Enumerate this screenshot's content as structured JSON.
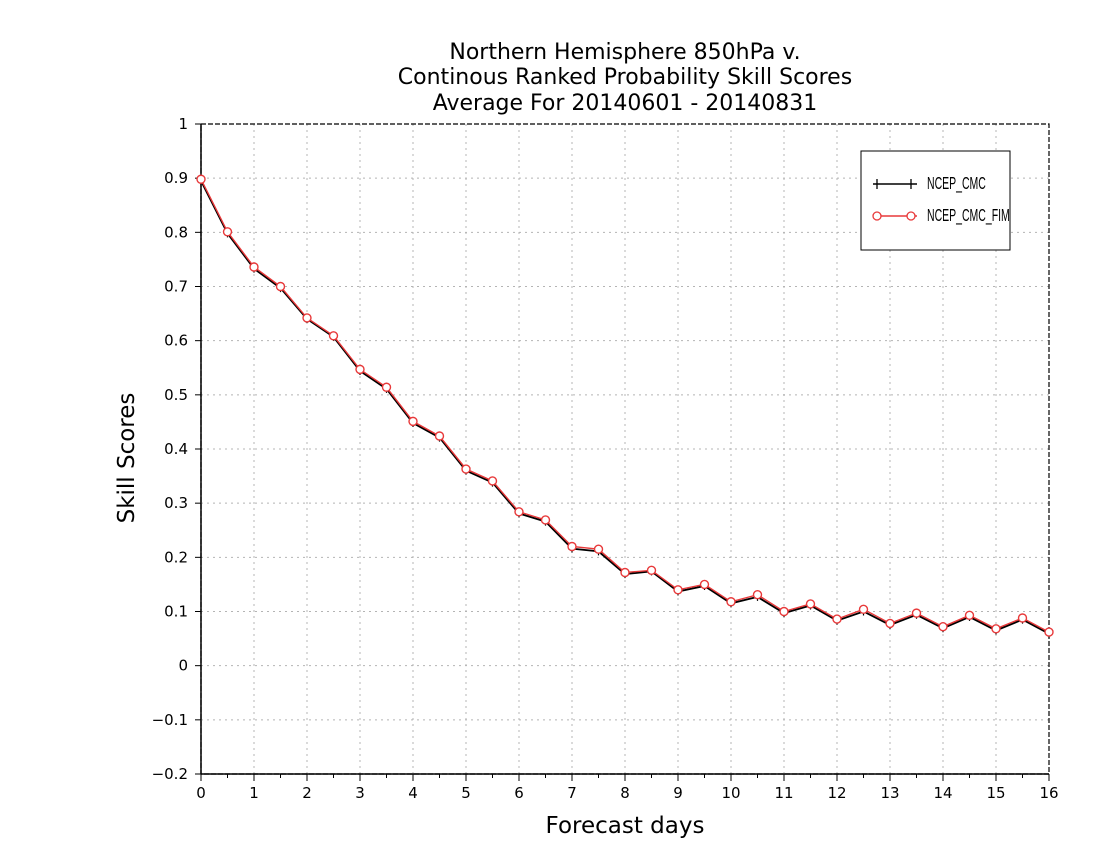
{
  "chart_data": {
    "type": "line",
    "title": [
      "Northern Hemisphere 850hPa v.",
      "Continous Ranked Probability Skill Scores",
      "Average For 20140601 - 20140831"
    ],
    "xlabel": "Forecast days",
    "ylabel": "Skill Scores",
    "xlim": [
      0,
      16
    ],
    "ylim": [
      -0.2,
      1
    ],
    "xticks": [
      "0",
      "1",
      "2",
      "3",
      "4",
      "5",
      "6",
      "7",
      "8",
      "9",
      "10",
      "11",
      "12",
      "13",
      "14",
      "15",
      "16"
    ],
    "yticks": [
      "-0.2",
      "-0.1",
      "0",
      "0.1",
      "0.2",
      "0.3",
      "0.4",
      "0.5",
      "0.6",
      "0.7",
      "0.8",
      "0.9",
      "1"
    ],
    "grid": true,
    "legend_position": "top-right",
    "x": [
      0,
      0.5,
      1,
      1.5,
      2,
      2.5,
      3,
      3.5,
      4,
      4.5,
      5,
      5.5,
      6,
      6.5,
      7,
      7.5,
      8,
      8.5,
      9,
      9.5,
      10,
      10.5,
      11,
      11.5,
      12,
      12.5,
      13,
      13.5,
      14,
      14.5,
      15,
      15.5,
      16
    ],
    "series": [
      {
        "name": "NCEP_CMC",
        "color": "#000000",
        "marker": "plus",
        "values": [
          0.895,
          0.798,
          0.733,
          0.697,
          0.64,
          0.607,
          0.544,
          0.511,
          0.448,
          0.421,
          0.36,
          0.338,
          0.281,
          0.266,
          0.216,
          0.211,
          0.169,
          0.174,
          0.137,
          0.147,
          0.115,
          0.127,
          0.097,
          0.111,
          0.083,
          0.1,
          0.075,
          0.094,
          0.069,
          0.09,
          0.065,
          0.085,
          0.059
        ]
      },
      {
        "name": "NCEP_CMC_FIM",
        "color": "#e8393a",
        "marker": "circle",
        "values": [
          0.898,
          0.801,
          0.736,
          0.7,
          0.642,
          0.609,
          0.547,
          0.514,
          0.451,
          0.424,
          0.363,
          0.341,
          0.284,
          0.269,
          0.22,
          0.215,
          0.172,
          0.176,
          0.14,
          0.15,
          0.118,
          0.131,
          0.1,
          0.114,
          0.086,
          0.104,
          0.078,
          0.097,
          0.072,
          0.093,
          0.068,
          0.088,
          0.062
        ]
      }
    ]
  }
}
